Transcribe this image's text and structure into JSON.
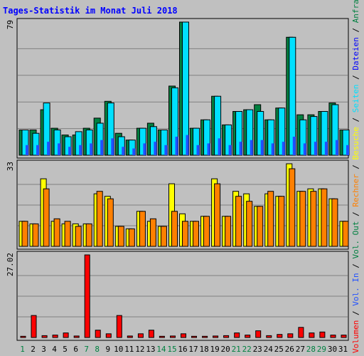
{
  "chart_data": {
    "type": "bar",
    "title": "Tages-Statistik im Monat Juli 2018",
    "categories": [
      "1",
      "2",
      "3",
      "4",
      "5",
      "6",
      "7",
      "8",
      "9",
      "10",
      "11",
      "12",
      "13",
      "14",
      "15",
      "16",
      "17",
      "18",
      "19",
      "20",
      "21",
      "22",
      "23",
      "24",
      "25",
      "26",
      "27",
      "28",
      "29",
      "30",
      "31"
    ],
    "weekend_days": [
      1,
      7,
      8,
      14,
      15,
      21,
      22,
      28,
      29
    ],
    "legend": [
      "Volumen",
      "Vol. In",
      "Vol. Out",
      "Rechner",
      "Besuche",
      "Seiten",
      "Dateien",
      "Anfragen"
    ],
    "legend_separator": " / ",
    "panels": [
      {
        "name": "Anfragen / Dateien / Seiten",
        "ymax_label": "79",
        "ymax": 79,
        "series": [
          {
            "name": "Anfragen",
            "color": "#008040",
            "values": [
              15,
              15,
              27,
              16,
              12,
              12,
              16,
              22,
              32,
              13,
              9,
              16,
              19,
              15,
              41,
              79,
              16,
              21,
              35,
              18,
              26,
              27,
              30,
              21,
              28,
              70,
              24,
              24,
              26,
              31,
              15
            ]
          },
          {
            "name": "Dateien",
            "color": "#00e0ff",
            "values": [
              15,
              13,
              31,
              15,
              11,
              14,
              15,
              19,
              31,
              11,
              9,
              16,
              17,
              15,
              40,
              79,
              16,
              21,
              35,
              18,
              26,
              27,
              26,
              21,
              28,
              70,
              21,
              23,
              26,
              30,
              15
            ]
          },
          {
            "name": "Seiten",
            "color": "#2050ff",
            "values": [
              6,
              6,
              8,
              7,
              5,
              6,
              7,
              9,
              10,
              5,
              4,
              7,
              8,
              6,
              11,
              12,
              6,
              7,
              10,
              6,
              8,
              9,
              9,
              7,
              8,
              11,
              7,
              8,
              8,
              9,
              6
            ]
          }
        ]
      },
      {
        "name": "Besuche / Rechner",
        "ymax_label": "33",
        "ymax": 33,
        "series": [
          {
            "name": "Besuche",
            "color": "#ffff00",
            "values": [
              10,
              9,
              27,
              10,
              9,
              9,
              9,
              21,
              20,
              8,
              7,
              14,
              10,
              8,
              25,
              13,
              10,
              12,
              27,
              12,
              22,
              21,
              16,
              21,
              20,
              33,
              22,
              23,
              23,
              19,
              10
            ]
          },
          {
            "name": "Rechner",
            "color": "#ff8000",
            "values": [
              10,
              9,
              23,
              11,
              10,
              8,
              9,
              22,
              19,
              8,
              7,
              14,
              11,
              8,
              14,
              10,
              10,
              12,
              25,
              12,
              20,
              18,
              16,
              22,
              20,
              31,
              22,
              22,
              23,
              19,
              10
            ]
          }
        ]
      },
      {
        "name": "Volumen",
        "ymax_label": "27.02",
        "ymax": 27.02,
        "series": [
          {
            "name": "Volumen",
            "color": "#ff0000",
            "values": [
              0.4,
              7.2,
              0.6,
              0.8,
              1.5,
              0.5,
              27.02,
              2.4,
              1.2,
              7.2,
              0.5,
              1.2,
              2.4,
              0.4,
              0.5,
              1.2,
              0.4,
              0.4,
              0.5,
              0.6,
              1.5,
              0.8,
              2.2,
              0.6,
              1.0,
              1.2,
              3.3,
              1.5,
              1.8,
              0.8,
              0.8
            ]
          }
        ]
      }
    ]
  },
  "colors": {
    "background": "#c0c0c0",
    "title": "#0000ff",
    "axis_label": "#000000",
    "weekday": "#000000",
    "weekend": "#008040",
    "legend": {
      "Volumen": "#ff0000",
      "Vol. In": "#2050ff",
      "Vol. Out": "#008040",
      "Rechner": "#ff8000",
      "Besuche": "#ffff00",
      "Seiten": "#00e0ff",
      "Dateien": "#0000ff",
      "Anfragen": "#008040",
      "separator": "#000000"
    }
  }
}
